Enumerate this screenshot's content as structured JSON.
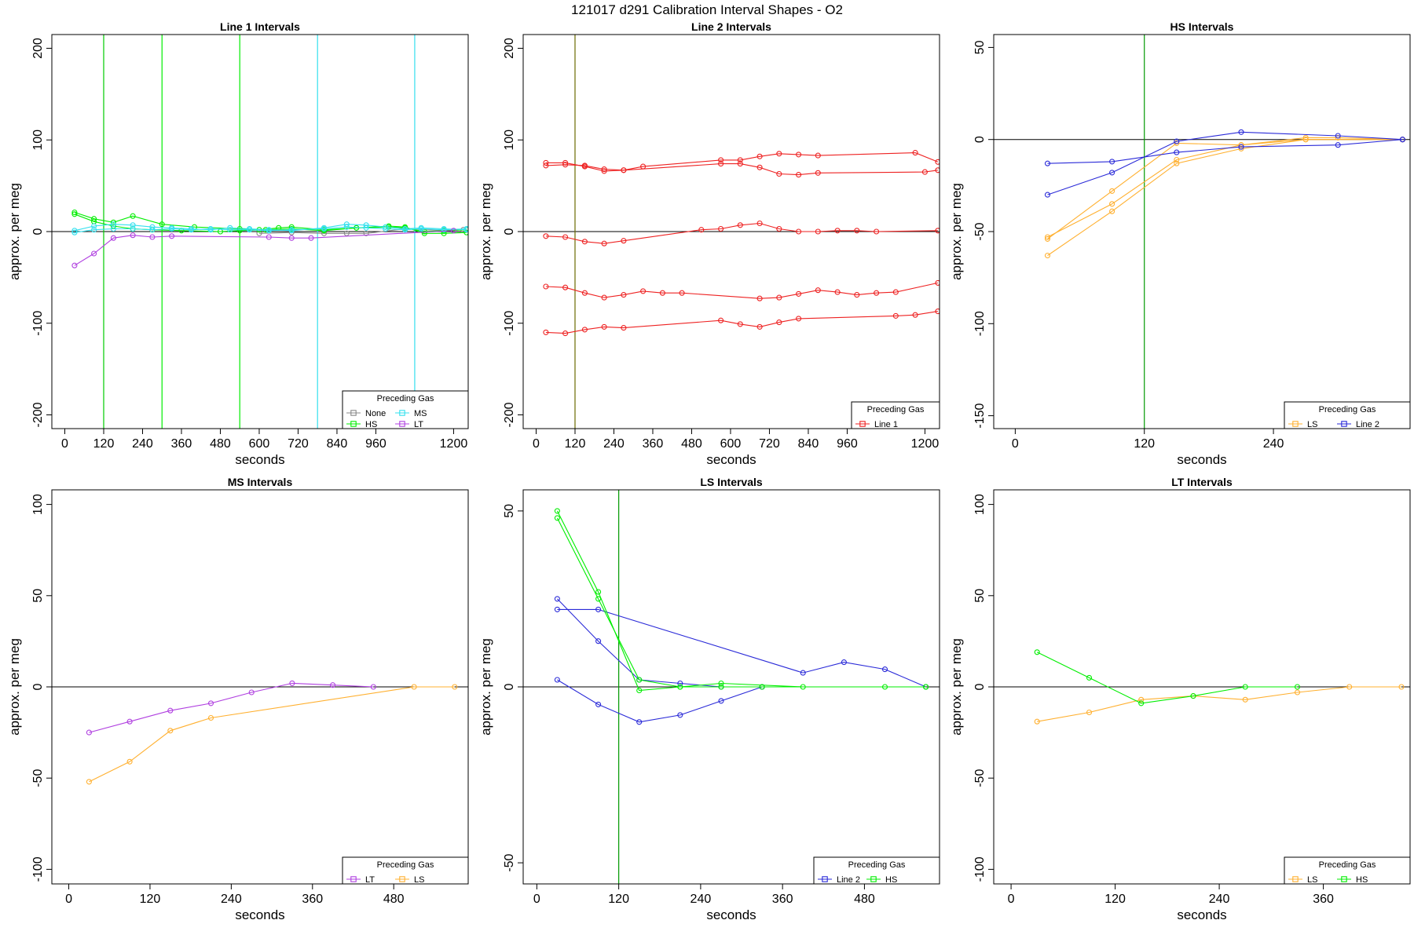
{
  "title": "121017   d291   Calibration Interval Shapes - O2",
  "chart_data": [
    {
      "type": "line",
      "title": "Line 1 Intervals",
      "xlabel": "seconds",
      "ylabel": "approx. per meg",
      "xlim": [
        -40,
        1245
      ],
      "ylim": [
        -215,
        215
      ],
      "xticks": [
        0,
        120,
        240,
        360,
        480,
        600,
        720,
        840,
        960,
        1200
      ],
      "xtick_labels": [
        "0",
        "120",
        "240",
        "360",
        "480",
        "600",
        "720",
        "840",
        "960",
        "1200"
      ],
      "yticks": [
        -200,
        -100,
        0,
        100,
        200
      ],
      "ytick_labels": [
        "-200",
        "-100",
        "0",
        "100",
        "200"
      ],
      "hlines": [
        0
      ],
      "vlines": [
        {
          "x": 120,
          "color": "#00cc00"
        },
        {
          "x": 300,
          "color": "#00ee00"
        },
        {
          "x": 540,
          "color": "#00ee00"
        },
        {
          "x": 780,
          "color": "#33e0ee"
        },
        {
          "x": 1080,
          "color": "#33e0ee"
        }
      ],
      "legend": {
        "title": "Preceding Gas",
        "position": "bottom-right",
        "cols": 2,
        "entries": [
          {
            "label": "None",
            "color": "#888888"
          },
          {
            "label": "MS",
            "color": "#33e0ee"
          },
          {
            "label": "HS",
            "color": "#00ee00"
          },
          {
            "label": "LT",
            "color": "#b040e0"
          }
        ]
      },
      "series": [
        {
          "name": "None",
          "color": "#888888",
          "x": [
            600,
            700,
            800,
            870,
            930,
            1050,
            1170,
            1230
          ],
          "y": [
            -2,
            -1,
            -2,
            -2,
            -2,
            3,
            1,
            2
          ]
        },
        {
          "name": "HS",
          "color": "#00ee00",
          "x": [
            30,
            90,
            150,
            210,
            300,
            400,
            540,
            600,
            660,
            700,
            800,
            900,
            1000,
            1050,
            1110,
            1170,
            1240
          ],
          "y": [
            21,
            14,
            10,
            17,
            8,
            5,
            3,
            2,
            4,
            5,
            2,
            4,
            6,
            5,
            -2,
            -2,
            -1
          ]
        },
        {
          "name": "HS",
          "color": "#00ee00",
          "x": [
            30,
            90,
            150,
            210,
            270,
            360,
            480,
            540,
            620,
            700,
            800,
            900,
            1000,
            1050,
            1110,
            1170,
            1240
          ],
          "y": [
            19,
            11,
            6,
            3,
            2,
            1,
            0,
            1,
            2,
            3,
            1,
            4,
            5,
            4,
            0,
            1,
            2
          ]
        },
        {
          "name": "MS",
          "color": "#33e0ee",
          "x": [
            30,
            90,
            150,
            210,
            270,
            330,
            390,
            450,
            510,
            570,
            630,
            700,
            800,
            870,
            930,
            990,
            1050,
            1100,
            1170,
            1240
          ],
          "y": [
            1,
            6,
            8,
            7,
            5,
            4,
            3,
            2,
            4,
            3,
            2,
            1,
            4,
            8,
            7,
            5,
            3,
            4,
            3,
            2
          ]
        },
        {
          "name": "MS",
          "color": "#33e0ee",
          "x": [
            30,
            90,
            150,
            210,
            270,
            330,
            390,
            450,
            510,
            570,
            630,
            700,
            800,
            870,
            930,
            990,
            1050,
            1100,
            1170,
            1240
          ],
          "y": [
            -1,
            2,
            3,
            3,
            2,
            3,
            2,
            3,
            2,
            2,
            1,
            2,
            3,
            5,
            4,
            3,
            2,
            3,
            2,
            3
          ]
        },
        {
          "name": "LT",
          "color": "#b040e0",
          "x": [
            30,
            90,
            150,
            210,
            270,
            330,
            630,
            700,
            760,
            1200
          ],
          "y": [
            -37,
            -24,
            -7,
            -4,
            -6,
            -5,
            -6,
            -7,
            -7,
            1
          ]
        }
      ]
    },
    {
      "type": "line",
      "title": "Line 2 Intervals",
      "xlabel": "seconds",
      "ylabel": "approx. per meg",
      "xlim": [
        -40,
        1245
      ],
      "ylim": [
        -215,
        215
      ],
      "xticks": [
        0,
        120,
        240,
        360,
        480,
        600,
        720,
        840,
        960,
        1200
      ],
      "xtick_labels": [
        "0",
        "120",
        "240",
        "360",
        "480",
        "600",
        "720",
        "840",
        "960",
        "1200"
      ],
      "yticks": [
        -200,
        -100,
        0,
        100,
        200
      ],
      "ytick_labels": [
        "-200",
        "-100",
        "0",
        "100",
        "200"
      ],
      "hlines": [
        0
      ],
      "vlines": [
        {
          "x": 120,
          "color": "#6b6b00"
        }
      ],
      "legend": {
        "title": "Preceding Gas",
        "position": "bottom-right",
        "cols": 1,
        "entries": [
          {
            "label": "Line 1",
            "color": "#ee2222"
          }
        ]
      },
      "series": [
        {
          "name": "Line 1",
          "color": "#ee2222",
          "x": [
            30,
            90,
            150,
            210,
            270,
            570,
            630,
            690,
            750,
            810,
            870,
            1200,
            1240
          ],
          "y": [
            75,
            75,
            71,
            66,
            67,
            74,
            74,
            70,
            63,
            62,
            64,
            65,
            67
          ]
        },
        {
          "name": "Line 1",
          "color": "#ee2222",
          "x": [
            30,
            90,
            150,
            210,
            270,
            330,
            570,
            630,
            690,
            750,
            810,
            870,
            1170,
            1240
          ],
          "y": [
            72,
            73,
            72,
            68,
            67,
            71,
            78,
            78,
            82,
            85,
            84,
            83,
            86,
            76
          ]
        },
        {
          "name": "Line 1",
          "color": "#ee2222",
          "x": [
            30,
            90,
            150,
            210,
            270,
            510,
            570,
            630,
            690,
            750,
            810,
            870,
            930,
            990,
            1050,
            1240
          ],
          "y": [
            -5,
            -6,
            -11,
            -13,
            -10,
            2,
            3,
            7,
            9,
            3,
            0,
            0,
            1,
            1,
            0,
            1
          ]
        },
        {
          "name": "Line 1",
          "color": "#ee2222",
          "x": [
            30,
            90,
            150,
            210,
            270,
            330,
            390,
            450,
            690,
            750,
            810,
            870,
            930,
            990,
            1050,
            1110,
            1240
          ],
          "y": [
            -60,
            -61,
            -67,
            -72,
            -69,
            -65,
            -67,
            -67,
            -73,
            -72,
            -68,
            -64,
            -66,
            -69,
            -67,
            -66,
            -56
          ]
        },
        {
          "name": "Line 1",
          "color": "#ee2222",
          "x": [
            30,
            90,
            150,
            210,
            270,
            570,
            630,
            690,
            750,
            810,
            1110,
            1170,
            1240
          ],
          "y": [
            -110,
            -111,
            -107,
            -104,
            -105,
            -97,
            -101,
            -104,
            -99,
            -95,
            -92,
            -91,
            -87
          ]
        }
      ]
    },
    {
      "type": "line",
      "title": "HS Intervals",
      "xlabel": "seconds",
      "ylabel": "approx. per meg",
      "xlim": [
        -20,
        367
      ],
      "ylim": [
        -157,
        57
      ],
      "xticks": [
        0,
        120,
        240
      ],
      "xtick_labels": [
        "0",
        "120",
        "240"
      ],
      "yticks": [
        -150,
        -100,
        -50,
        0,
        50
      ],
      "ytick_labels": [
        "-150",
        "-100",
        "-50",
        "0",
        "50"
      ],
      "hlines": [
        0
      ],
      "vlines": [
        {
          "x": 120,
          "color": "#009900"
        }
      ],
      "legend": {
        "title": "Preceding Gas",
        "position": "bottom-right",
        "cols": 2,
        "entries": [
          {
            "label": "LS",
            "color": "#ffb030"
          },
          {
            "label": "Line 2",
            "color": "#2a2ad8"
          }
        ]
      },
      "series": [
        {
          "name": "LS",
          "color": "#ffb030",
          "x": [
            30,
            90,
            150,
            210,
            270,
            300,
            360
          ],
          "y": [
            -54,
            -28,
            -2,
            -3,
            1,
            1,
            0
          ]
        },
        {
          "name": "LS",
          "color": "#ffb030",
          "x": [
            30,
            90,
            150,
            210,
            270,
            360
          ],
          "y": [
            -53,
            -35,
            -11,
            -3,
            0,
            0
          ]
        },
        {
          "name": "LS",
          "color": "#ffb030",
          "x": [
            30,
            90,
            150,
            210,
            270,
            360
          ],
          "y": [
            -63,
            -39,
            -13,
            -5,
            0,
            0
          ]
        },
        {
          "name": "Line 2",
          "color": "#2a2ad8",
          "x": [
            30,
            90,
            150,
            210,
            300,
            360
          ],
          "y": [
            -30,
            -18,
            -1,
            4,
            2,
            0
          ]
        },
        {
          "name": "Line 2",
          "color": "#2a2ad8",
          "x": [
            30,
            90,
            150,
            210,
            300,
            360
          ],
          "y": [
            -13,
            -12,
            -7,
            -4,
            -3,
            0
          ]
        }
      ]
    },
    {
      "type": "line",
      "title": "MS Intervals",
      "xlabel": "seconds",
      "ylabel": "approx. per meg",
      "xlim": [
        -25,
        590
      ],
      "ylim": [
        -108,
        108
      ],
      "xticks": [
        0,
        120,
        240,
        360,
        480
      ],
      "xtick_labels": [
        "0",
        "120",
        "240",
        "360",
        "480"
      ],
      "yticks": [
        -100,
        -50,
        0,
        50,
        100
      ],
      "ytick_labels": [
        "-100",
        "-50",
        "0",
        "50",
        "100"
      ],
      "hlines": [
        0
      ],
      "vlines": [],
      "legend": {
        "title": "Preceding Gas",
        "position": "bottom-right",
        "cols": 2,
        "entries": [
          {
            "label": "LT",
            "color": "#b040e0"
          },
          {
            "label": "LS",
            "color": "#ffb030"
          }
        ]
      },
      "series": [
        {
          "name": "LT",
          "color": "#b040e0",
          "x": [
            30,
            90,
            150,
            210,
            270,
            330,
            390,
            450
          ],
          "y": [
            -25,
            -19,
            -13,
            -9,
            -3,
            2,
            1,
            0
          ]
        },
        {
          "name": "LS",
          "color": "#ffb030",
          "x": [
            30,
            90,
            150,
            210,
            510,
            570
          ],
          "y": [
            -52,
            -41,
            -24,
            -17,
            0,
            0
          ]
        }
      ]
    },
    {
      "type": "line",
      "title": "LS Intervals",
      "xlabel": "seconds",
      "ylabel": "approx. per meg",
      "xlim": [
        -20,
        590
      ],
      "ylim": [
        -56,
        56
      ],
      "xticks": [
        0,
        120,
        240,
        360,
        480
      ],
      "xtick_labels": [
        "0",
        "120",
        "240",
        "360",
        "480"
      ],
      "yticks": [
        -50,
        0,
        50
      ],
      "ytick_labels": [
        "-50",
        "0",
        "50"
      ],
      "hlines": [
        0
      ],
      "vlines": [
        {
          "x": 120,
          "color": "#009900"
        }
      ],
      "legend": {
        "title": "Preceding Gas",
        "position": "bottom-right",
        "cols": 2,
        "entries": [
          {
            "label": "Line 2",
            "color": "#2a2ad8"
          },
          {
            "label": "HS",
            "color": "#00ee00"
          }
        ]
      },
      "series": [
        {
          "name": "Line 2",
          "color": "#2a2ad8",
          "x": [
            30,
            90,
            150,
            210,
            270,
            330
          ],
          "y": [
            25,
            13,
            2,
            1,
            0,
            0
          ]
        },
        {
          "name": "Line 2",
          "color": "#2a2ad8",
          "x": [
            30,
            90,
            390,
            450,
            510,
            570
          ],
          "y": [
            22,
            22,
            4,
            7,
            5,
            0
          ]
        },
        {
          "name": "Line 2",
          "color": "#2a2ad8",
          "x": [
            30,
            90,
            150,
            210,
            270,
            330
          ],
          "y": [
            2,
            -5,
            -10,
            -8,
            -4,
            0
          ]
        },
        {
          "name": "HS",
          "color": "#00ee00",
          "x": [
            30,
            90,
            150,
            210,
            270,
            390,
            510,
            570
          ],
          "y": [
            50,
            27,
            -1,
            0,
            1,
            0,
            0,
            0
          ]
        },
        {
          "name": "HS",
          "color": "#00ee00",
          "x": [
            30,
            90,
            150,
            210,
            270,
            330,
            570
          ],
          "y": [
            48,
            25,
            2,
            0,
            0,
            0,
            0
          ]
        }
      ]
    },
    {
      "type": "line",
      "title": "LT Intervals",
      "xlabel": "seconds",
      "ylabel": "approx. per meg",
      "xlim": [
        -20,
        460
      ],
      "ylim": [
        -108,
        108
      ],
      "xticks": [
        0,
        120,
        240,
        360
      ],
      "xtick_labels": [
        "0",
        "120",
        "240",
        "360"
      ],
      "yticks": [
        -100,
        -50,
        0,
        50,
        100
      ],
      "ytick_labels": [
        "-100",
        "-50",
        "0",
        "50",
        "100"
      ],
      "hlines": [
        0
      ],
      "vlines": [],
      "legend": {
        "title": "Preceding Gas",
        "position": "bottom-right",
        "cols": 2,
        "entries": [
          {
            "label": "LS",
            "color": "#ffb030"
          },
          {
            "label": "HS",
            "color": "#00ee00"
          }
        ]
      },
      "series": [
        {
          "name": "LS",
          "color": "#ffb030",
          "x": [
            30,
            90,
            150,
            210,
            270,
            330,
            390,
            450
          ],
          "y": [
            -19,
            -14,
            -7,
            -5,
            -7,
            -3,
            0,
            0
          ]
        },
        {
          "name": "HS",
          "color": "#00ee00",
          "x": [
            30,
            90,
            150,
            210,
            270,
            330
          ],
          "y": [
            19,
            5,
            -9,
            -5,
            0,
            0
          ]
        }
      ]
    }
  ]
}
